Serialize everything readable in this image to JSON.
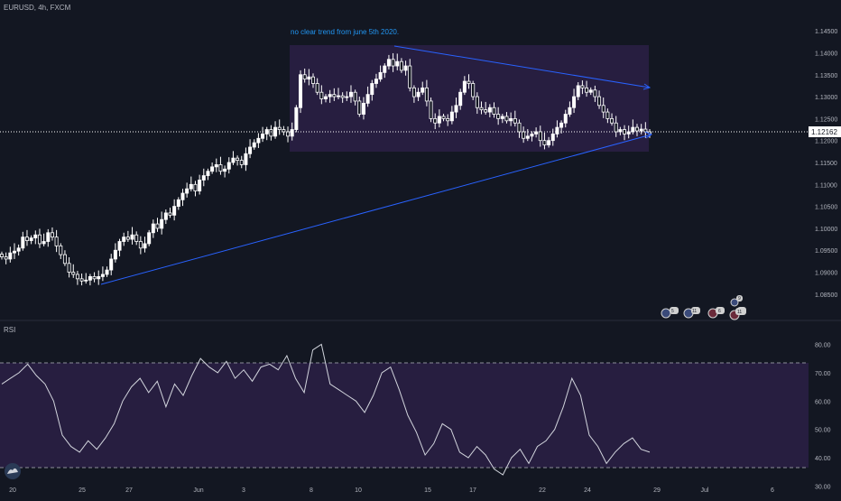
{
  "header": {
    "symbol_info": "EURUSD, 4h, FXCM"
  },
  "annotation": "no clear trend from june 5th 2020.",
  "price_label": "1.12162",
  "rsi_label": "RSI",
  "colors": {
    "background": "#131722",
    "up_candle": "#ffffff",
    "down_candle": "#ffffff",
    "box_fill": "#2a1f44",
    "trendline": "#2962ff",
    "annotation": "#2196f3",
    "rsi_line": "#d1d4dc",
    "rsi_band": "#2a1f44",
    "axis_text": "#b2b5be",
    "price_line": "#ffffff"
  },
  "event_badges": [
    {
      "icon": "flag-icon",
      "count": "5"
    },
    {
      "icon": "flag-icon",
      "count": "11"
    },
    {
      "icon": "flag-icon",
      "count": "6"
    },
    {
      "icon": "flag-icon",
      "count": "6"
    },
    {
      "icon": "flag-icon",
      "count": "11"
    },
    {
      "icon": "flag-icon",
      "count": "9"
    }
  ],
  "chart_data": [
    {
      "type": "candlestick",
      "x_tick_labels": [
        "20",
        "25",
        "27",
        "Jun",
        "3",
        "8",
        "10",
        "15",
        "17",
        "22",
        "24",
        "29",
        "Jul",
        "6"
      ],
      "y_tick_labels": [
        "1.14500",
        "1.14000",
        "1.13500",
        "1.13000",
        "1.12500",
        "1.12000",
        "1.11500",
        "1.11000",
        "1.10500",
        "1.10000",
        "1.09500",
        "1.09000",
        "1.08500"
      ],
      "ylim": [
        1.0825,
        1.1475
      ],
      "grid": false,
      "close_series": [
        1.0935,
        1.093,
        1.0944,
        1.0948,
        1.0955,
        1.098,
        1.0972,
        1.0978,
        1.0985,
        1.0965,
        1.097,
        1.099,
        1.098,
        1.096,
        1.094,
        1.092,
        1.09,
        1.0895,
        1.0885,
        1.088,
        1.0882,
        1.089,
        1.0885,
        1.089,
        1.0895,
        1.0905,
        1.093,
        1.095,
        1.097,
        1.098,
        1.0975,
        1.0985,
        1.097,
        1.0955,
        1.0965,
        1.099,
        1.101,
        1.1,
        1.102,
        1.1035,
        1.103,
        1.105,
        1.1065,
        1.108,
        1.109,
        1.11,
        1.1085,
        1.111,
        1.112,
        1.113,
        1.114,
        1.1145,
        1.113,
        1.1135,
        1.115,
        1.116,
        1.1155,
        1.1145,
        1.117,
        1.1185,
        1.1195,
        1.1205,
        1.1215,
        1.1225,
        1.121,
        1.123,
        1.1225,
        1.122,
        1.121,
        1.1225,
        1.1275,
        1.135,
        1.134,
        1.1345,
        1.133,
        1.131,
        1.1295,
        1.13,
        1.1305,
        1.13,
        1.1302,
        1.1298,
        1.13,
        1.131,
        1.129,
        1.126,
        1.1285,
        1.1305,
        1.133,
        1.134,
        1.1355,
        1.137,
        1.1385,
        1.137,
        1.138,
        1.136,
        1.137,
        1.132,
        1.13,
        1.131,
        1.132,
        1.129,
        1.125,
        1.124,
        1.1255,
        1.125,
        1.1245,
        1.1265,
        1.128,
        1.131,
        1.1335,
        1.133,
        1.13,
        1.1275,
        1.127,
        1.1265,
        1.1275,
        1.126,
        1.125,
        1.1255,
        1.1245,
        1.125,
        1.124,
        1.122,
        1.1205,
        1.121,
        1.1215,
        1.122,
        1.12,
        1.119,
        1.12,
        1.1215,
        1.123,
        1.124,
        1.126,
        1.1275,
        1.13,
        1.1325,
        1.132,
        1.131,
        1.1315,
        1.13,
        1.128,
        1.1265,
        1.125,
        1.124,
        1.122,
        1.1225,
        1.1215,
        1.122,
        1.123,
        1.1222,
        1.1226,
        1.122,
        1.1216
      ]
    },
    {
      "type": "line",
      "name": "RSI",
      "y_tick_labels": [
        "80.00",
        "70.00",
        "60.00",
        "50.00",
        "40.00",
        "30.00"
      ],
      "ylim": [
        27,
        83
      ],
      "band": [
        30,
        70
      ],
      "x": [
        0,
        2,
        4,
        6,
        8,
        10,
        12,
        14,
        16,
        18,
        20,
        22,
        24,
        26,
        28,
        30,
        32,
        34,
        36,
        38,
        40,
        42,
        44,
        46,
        48,
        50,
        52,
        54,
        56,
        58,
        60,
        62,
        64,
        66,
        68,
        70,
        72,
        74,
        76,
        78,
        80,
        82,
        84,
        86,
        88,
        90,
        92,
        94,
        96,
        98,
        100,
        102,
        104,
        106,
        108,
        110,
        112,
        114,
        116,
        118,
        120,
        122,
        124,
        126,
        128,
        130,
        132,
        134,
        136,
        138,
        140,
        142,
        144,
        146,
        148,
        150
      ],
      "values": [
        66,
        68,
        70,
        73,
        69,
        66,
        60,
        48,
        44,
        42,
        46,
        43,
        47,
        52,
        60,
        65,
        68,
        63,
        67,
        58,
        66,
        62,
        69,
        75,
        72,
        70,
        74,
        68,
        71,
        67,
        72,
        73,
        71,
        76,
        68,
        63,
        78,
        80,
        66,
        64,
        62,
        60,
        56,
        62,
        70,
        72,
        64,
        55,
        49,
        41,
        45,
        52,
        50,
        42,
        40,
        44,
        41,
        36,
        34,
        40,
        43,
        38,
        44,
        46,
        50,
        58,
        68,
        62,
        48,
        44,
        38,
        42,
        45,
        47,
        43,
        42
      ]
    }
  ]
}
